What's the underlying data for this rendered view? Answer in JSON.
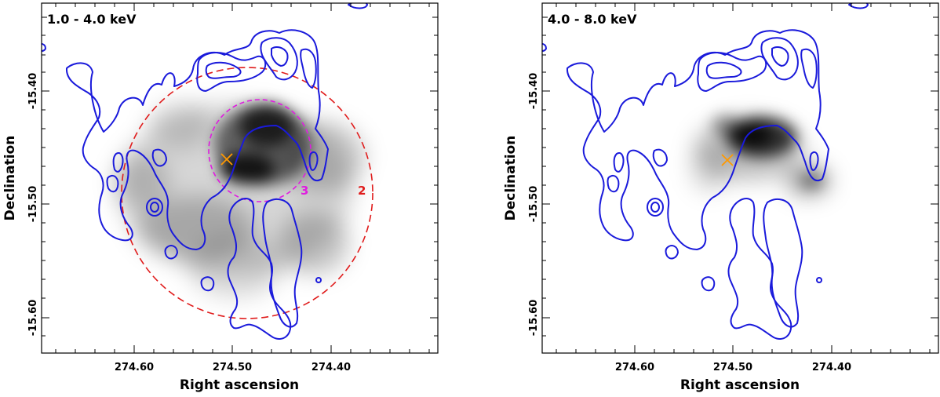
{
  "colors": {
    "contour": "#1a1adb",
    "region2": "#e01c1c",
    "region3": "#e01ce0",
    "source": "#ff9900",
    "background": "#ffffff"
  },
  "chart_data": [
    {
      "type": "image",
      "panel_label": "1.0 - 4.0 keV",
      "xlabel": "Right ascension",
      "ylabel": "Declination",
      "x_ticks": [
        "274.60",
        "274.50",
        "274.40"
      ],
      "y_ticks": [
        "-15.40",
        "-15.50",
        "-15.60"
      ],
      "regions": [
        {
          "label": "2",
          "shape": "dashed-circle",
          "color": "red"
        },
        {
          "label": "3",
          "shape": "dashed-circle",
          "color": "magenta"
        }
      ],
      "markers": [
        {
          "symbol": "x",
          "color": "orange"
        }
      ]
    },
    {
      "type": "image",
      "panel_label": "4.0 - 8.0 keV",
      "xlabel": "Right ascension",
      "ylabel": "Declination",
      "x_ticks": [
        "274.60",
        "274.50",
        "274.40"
      ],
      "y_ticks": [
        "-15.40",
        "-15.50",
        "-15.60"
      ],
      "regions": [],
      "markers": [
        {
          "symbol": "x",
          "color": "orange"
        }
      ]
    }
  ]
}
